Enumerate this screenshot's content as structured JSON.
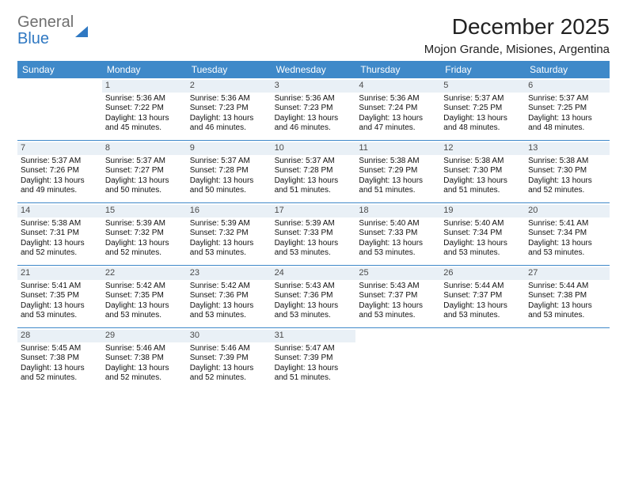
{
  "logo": {
    "textTop": "General",
    "textBottom": "Blue"
  },
  "title": "December 2025",
  "subtitle": "Mojon Grande, Misiones, Argentina",
  "styles": {
    "header_bg": "#3f89c9",
    "header_text": "#ffffff",
    "daynum_bg": "#e9f0f6",
    "row_divider": "#3f89c9",
    "logo_gray": "#6f6f6f",
    "logo_blue": "#2f78c2",
    "body_font_size": 10,
    "header_font_size": 12
  },
  "dayNames": [
    "Sunday",
    "Monday",
    "Tuesday",
    "Wednesday",
    "Thursday",
    "Friday",
    "Saturday"
  ],
  "weeks": [
    [
      null,
      {
        "n": "1",
        "sr": "Sunrise: 5:36 AM",
        "ss": "Sunset: 7:22 PM",
        "dl1": "Daylight: 13 hours",
        "dl2": "and 45 minutes."
      },
      {
        "n": "2",
        "sr": "Sunrise: 5:36 AM",
        "ss": "Sunset: 7:23 PM",
        "dl1": "Daylight: 13 hours",
        "dl2": "and 46 minutes."
      },
      {
        "n": "3",
        "sr": "Sunrise: 5:36 AM",
        "ss": "Sunset: 7:23 PM",
        "dl1": "Daylight: 13 hours",
        "dl2": "and 46 minutes."
      },
      {
        "n": "4",
        "sr": "Sunrise: 5:36 AM",
        "ss": "Sunset: 7:24 PM",
        "dl1": "Daylight: 13 hours",
        "dl2": "and 47 minutes."
      },
      {
        "n": "5",
        "sr": "Sunrise: 5:37 AM",
        "ss": "Sunset: 7:25 PM",
        "dl1": "Daylight: 13 hours",
        "dl2": "and 48 minutes."
      },
      {
        "n": "6",
        "sr": "Sunrise: 5:37 AM",
        "ss": "Sunset: 7:25 PM",
        "dl1": "Daylight: 13 hours",
        "dl2": "and 48 minutes."
      }
    ],
    [
      {
        "n": "7",
        "sr": "Sunrise: 5:37 AM",
        "ss": "Sunset: 7:26 PM",
        "dl1": "Daylight: 13 hours",
        "dl2": "and 49 minutes."
      },
      {
        "n": "8",
        "sr": "Sunrise: 5:37 AM",
        "ss": "Sunset: 7:27 PM",
        "dl1": "Daylight: 13 hours",
        "dl2": "and 50 minutes."
      },
      {
        "n": "9",
        "sr": "Sunrise: 5:37 AM",
        "ss": "Sunset: 7:28 PM",
        "dl1": "Daylight: 13 hours",
        "dl2": "and 50 minutes."
      },
      {
        "n": "10",
        "sr": "Sunrise: 5:37 AM",
        "ss": "Sunset: 7:28 PM",
        "dl1": "Daylight: 13 hours",
        "dl2": "and 51 minutes."
      },
      {
        "n": "11",
        "sr": "Sunrise: 5:38 AM",
        "ss": "Sunset: 7:29 PM",
        "dl1": "Daylight: 13 hours",
        "dl2": "and 51 minutes."
      },
      {
        "n": "12",
        "sr": "Sunrise: 5:38 AM",
        "ss": "Sunset: 7:30 PM",
        "dl1": "Daylight: 13 hours",
        "dl2": "and 51 minutes."
      },
      {
        "n": "13",
        "sr": "Sunrise: 5:38 AM",
        "ss": "Sunset: 7:30 PM",
        "dl1": "Daylight: 13 hours",
        "dl2": "and 52 minutes."
      }
    ],
    [
      {
        "n": "14",
        "sr": "Sunrise: 5:38 AM",
        "ss": "Sunset: 7:31 PM",
        "dl1": "Daylight: 13 hours",
        "dl2": "and 52 minutes."
      },
      {
        "n": "15",
        "sr": "Sunrise: 5:39 AM",
        "ss": "Sunset: 7:32 PM",
        "dl1": "Daylight: 13 hours",
        "dl2": "and 52 minutes."
      },
      {
        "n": "16",
        "sr": "Sunrise: 5:39 AM",
        "ss": "Sunset: 7:32 PM",
        "dl1": "Daylight: 13 hours",
        "dl2": "and 53 minutes."
      },
      {
        "n": "17",
        "sr": "Sunrise: 5:39 AM",
        "ss": "Sunset: 7:33 PM",
        "dl1": "Daylight: 13 hours",
        "dl2": "and 53 minutes."
      },
      {
        "n": "18",
        "sr": "Sunrise: 5:40 AM",
        "ss": "Sunset: 7:33 PM",
        "dl1": "Daylight: 13 hours",
        "dl2": "and 53 minutes."
      },
      {
        "n": "19",
        "sr": "Sunrise: 5:40 AM",
        "ss": "Sunset: 7:34 PM",
        "dl1": "Daylight: 13 hours",
        "dl2": "and 53 minutes."
      },
      {
        "n": "20",
        "sr": "Sunrise: 5:41 AM",
        "ss": "Sunset: 7:34 PM",
        "dl1": "Daylight: 13 hours",
        "dl2": "and 53 minutes."
      }
    ],
    [
      {
        "n": "21",
        "sr": "Sunrise: 5:41 AM",
        "ss": "Sunset: 7:35 PM",
        "dl1": "Daylight: 13 hours",
        "dl2": "and 53 minutes."
      },
      {
        "n": "22",
        "sr": "Sunrise: 5:42 AM",
        "ss": "Sunset: 7:35 PM",
        "dl1": "Daylight: 13 hours",
        "dl2": "and 53 minutes."
      },
      {
        "n": "23",
        "sr": "Sunrise: 5:42 AM",
        "ss": "Sunset: 7:36 PM",
        "dl1": "Daylight: 13 hours",
        "dl2": "and 53 minutes."
      },
      {
        "n": "24",
        "sr": "Sunrise: 5:43 AM",
        "ss": "Sunset: 7:36 PM",
        "dl1": "Daylight: 13 hours",
        "dl2": "and 53 minutes."
      },
      {
        "n": "25",
        "sr": "Sunrise: 5:43 AM",
        "ss": "Sunset: 7:37 PM",
        "dl1": "Daylight: 13 hours",
        "dl2": "and 53 minutes."
      },
      {
        "n": "26",
        "sr": "Sunrise: 5:44 AM",
        "ss": "Sunset: 7:37 PM",
        "dl1": "Daylight: 13 hours",
        "dl2": "and 53 minutes."
      },
      {
        "n": "27",
        "sr": "Sunrise: 5:44 AM",
        "ss": "Sunset: 7:38 PM",
        "dl1": "Daylight: 13 hours",
        "dl2": "and 53 minutes."
      }
    ],
    [
      {
        "n": "28",
        "sr": "Sunrise: 5:45 AM",
        "ss": "Sunset: 7:38 PM",
        "dl1": "Daylight: 13 hours",
        "dl2": "and 52 minutes."
      },
      {
        "n": "29",
        "sr": "Sunrise: 5:46 AM",
        "ss": "Sunset: 7:38 PM",
        "dl1": "Daylight: 13 hours",
        "dl2": "and 52 minutes."
      },
      {
        "n": "30",
        "sr": "Sunrise: 5:46 AM",
        "ss": "Sunset: 7:39 PM",
        "dl1": "Daylight: 13 hours",
        "dl2": "and 52 minutes."
      },
      {
        "n": "31",
        "sr": "Sunrise: 5:47 AM",
        "ss": "Sunset: 7:39 PM",
        "dl1": "Daylight: 13 hours",
        "dl2": "and 51 minutes."
      },
      null,
      null,
      null
    ]
  ]
}
